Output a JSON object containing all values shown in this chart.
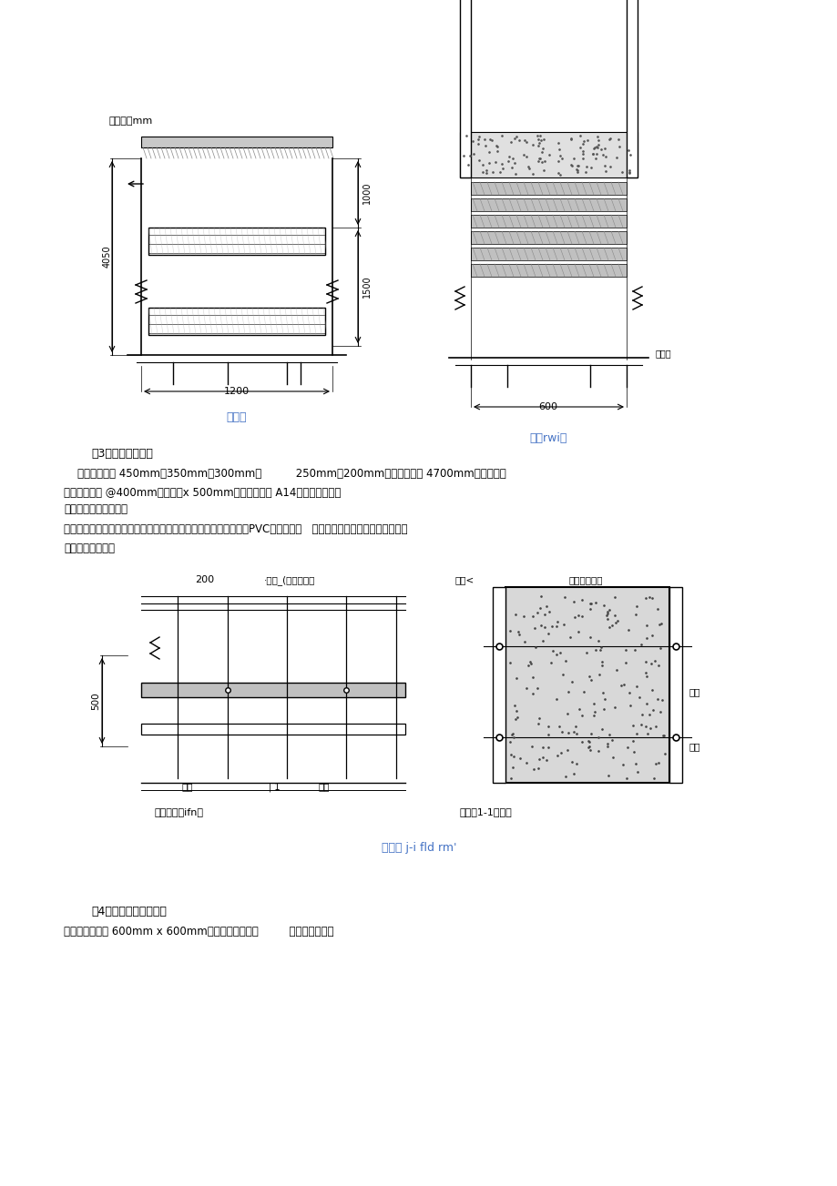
{
  "bg_color": "#ffffff",
  "text_color": "#000000",
  "line_color": "#000000",
  "blue_text": "#4472c4",
  "unit_label": "半位：（mm",
  "diagram1_label": "断面图",
  "diagram2_label": "侧立rwi图",
  "section3_title": "（3）剪力墙模板：",
  "section3_text1": "    剪力墙厚度有 450mm、350mm、300mm、          250mm、200mm等尺寸，墙高 4700mm，地下室剪",
  "section3_text2": "力墙外墙接照 @400mm（竖向）x 500mm（横向）设置 A14止水对拉螺杆；",
  "section3_text3": "地下室内墙所有防护密",
  "section3_text4": "闸隔墙、密闭墙及其对于墙上梁在施工支模时采用螺杆拉结模板，PVC管，具体部   只可使用一次性螺杆不允许使用用",
  "section3_text5": "位详见设计图纸；",
  "dim_200": "200",
  "dim_label_main": "·主楞_(目於诶置）",
  "dim_label_main2": "主肉<",
  "dim_label_side": "仗槅（方朵：",
  "label_mianban": "面板",
  "label_luoshuan": "螺桩",
  "label_luoshuan2": "螺桩",
  "label_zhenglifang": "墙模顺正立ifn副",
  "label_cedian": "堵墁板1-1剖向圈",
  "caption_bottom": "增模医 j-i fld rm'",
  "section4_title": "（4）地库框架柱模板：",
  "section4_text1": "本工程柱尺寸为 600mm x 600mm，柱箍采用钢管，         竖楞米用方木。"
}
